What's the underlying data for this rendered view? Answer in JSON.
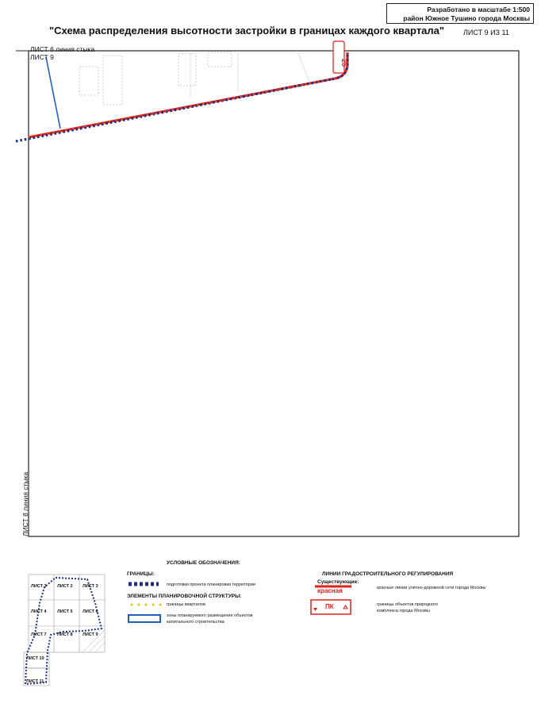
{
  "stamp": {
    "line1": "Разработано в масштабе 1:500",
    "line2": "район Южное Тушино города Москвы"
  },
  "title": "\"Схема распределения высотности застройки в границах каждого квартала\"",
  "sheet_number": "ЛИСТ 9 ИЗ 11",
  "map": {
    "top_label_1": "ЛИСТ 6 линия стыка",
    "top_label_2": "ЛИСТ 9",
    "left_label": "ЛИСТ 8 линия стыка",
    "marker_text": "25",
    "colors": {
      "red_line": "#e0201a",
      "boundary_blue": "#1e2f8a",
      "zone_blue": "#1f5fc0",
      "frame": "#222222"
    }
  },
  "legend": {
    "title": "УСЛОВНЫЕ ОБОЗНАЧЕНИЯ:",
    "boundaries_head": "ГРАНИЦЫ:",
    "boundaries_item": "подготовки проекта планировки территории",
    "elements_head": "ЭЛЕМЕНТЫ ПЛАНИРОВОЧНОЙ СТРУКТУРЫ:",
    "quarters_item": "границы кварталов",
    "zones_item_1": "зоны планируемого размещения объектов",
    "zones_item_2": "капитального строительства",
    "regulation_head": "ЛИНИИ ГРАДОСТРОИТЕЛЬНОГО РЕГУЛИРОВАНИЯ",
    "existing_head": "Существующие:",
    "red_symbol_label": "красная",
    "red_lines_item": "красные линии улично-дорожной сети города Москвы",
    "pk_symbol_label": "ПК",
    "pk_item_1": "границы объектов природного",
    "pk_item_2": "комплекса города Москвы"
  },
  "key_map": {
    "sheets": [
      "ЛИСТ 1",
      "ЛИСТ 2",
      "ЛИСТ 3",
      "ЛИСТ 4",
      "ЛИСТ 5",
      "ЛИСТ 6",
      "ЛИСТ 7",
      "ЛИСТ 8",
      "ЛИСТ 9",
      "ЛИСТ 10",
      "ЛИСТ 11"
    ]
  }
}
